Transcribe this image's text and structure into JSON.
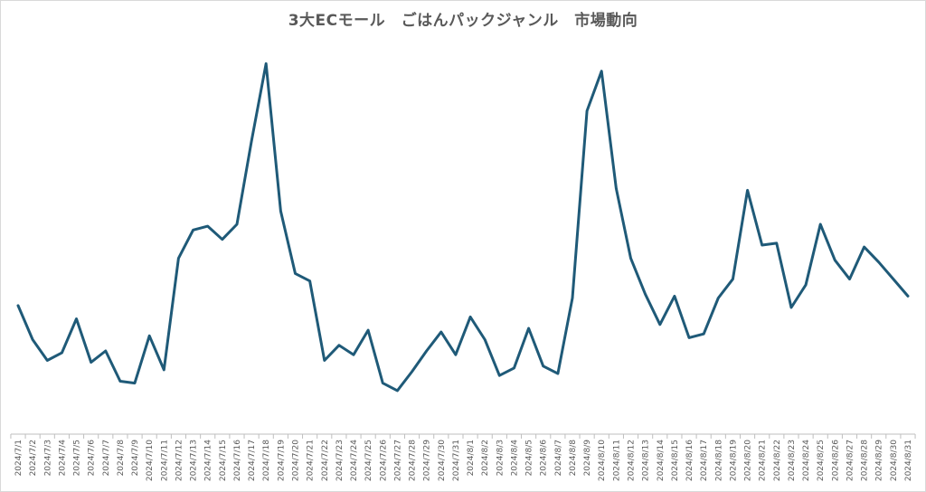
{
  "chart_data": {
    "type": "line",
    "title": "3大ECモール　ごはんパックジャンル　市場動向",
    "xlabel": "",
    "ylabel": "",
    "ylim": [
      0,
      100
    ],
    "grid": false,
    "legend": "none",
    "colors": {
      "line": "#1f5a78",
      "axis": "#bfbfbf",
      "text": "#595959"
    },
    "categories": [
      "2024/7/1",
      "2024/7/2",
      "2024/7/3",
      "2024/7/4",
      "2024/7/5",
      "2024/7/6",
      "2024/7/7",
      "2024/7/8",
      "2024/7/9",
      "2024/7/10",
      "2024/7/11",
      "2024/7/12",
      "2024/7/13",
      "2024/7/14",
      "2024/7/15",
      "2024/7/16",
      "2024/7/17",
      "2024/7/18",
      "2024/7/19",
      "2024/7/20",
      "2024/7/21",
      "2024/7/22",
      "2024/7/23",
      "2024/7/24",
      "2024/7/25",
      "2024/7/26",
      "2024/7/27",
      "2024/7/28",
      "2024/7/29",
      "2024/7/30",
      "2024/7/31",
      "2024/8/1",
      "2024/8/2",
      "2024/8/3",
      "2024/8/4",
      "2024/8/5",
      "2024/8/6",
      "2024/8/7",
      "2024/8/8",
      "2024/8/9",
      "2024/8/10",
      "2024/8/11",
      "2024/8/12",
      "2024/8/13",
      "2024/8/14",
      "2024/8/15",
      "2024/8/16",
      "2024/8/17",
      "2024/8/18",
      "2024/8/19",
      "2024/8/20",
      "2024/8/21",
      "2024/8/22",
      "2024/8/23",
      "2024/8/24",
      "2024/8/25",
      "2024/8/26",
      "2024/8/27",
      "2024/8/28",
      "2024/8/29",
      "2024/8/30",
      "2024/8/31"
    ],
    "series": [
      {
        "values": [
          34,
          25,
          19.5,
          21.5,
          30.5,
          19,
          22,
          14,
          13.5,
          26,
          17,
          46.5,
          54,
          55,
          51.5,
          55.5,
          77.5,
          98,
          59,
          42.5,
          40.5,
          19.5,
          23.5,
          21,
          27.5,
          13.5,
          11.5,
          16.5,
          22,
          27,
          21,
          31,
          25,
          15.5,
          17.5,
          28,
          18,
          16,
          36,
          85.5,
          96,
          65,
          46.5,
          37,
          29,
          36.5,
          25.5,
          26.5,
          36,
          41,
          64.5,
          50,
          50.5,
          33.5,
          39.5,
          55.5,
          46,
          41,
          49.5,
          45.5,
          41,
          36.5
        ]
      }
    ]
  }
}
